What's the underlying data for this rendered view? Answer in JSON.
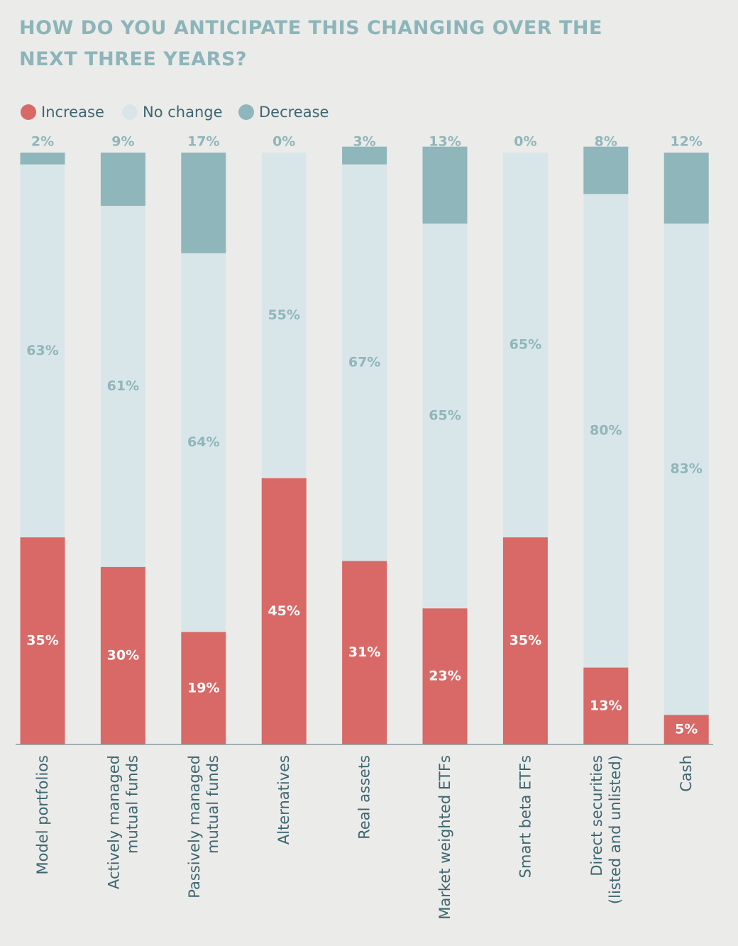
{
  "chart_data": {
    "type": "stacked_bar",
    "title": "HOW DO YOU ANTICIPATE THIS CHANGING OVER THE NEXT THREE YEARS?",
    "categories": [
      "Model portfolios",
      "Actively managed\nmutual funds",
      "Passively managed\nmutual funds",
      "Alternatives",
      "Real assets",
      "Market weighted ETFs",
      "Smart beta ETFs",
      "Direct securities\n(listed and unlisted)",
      "Cash"
    ],
    "series": [
      {
        "name": "Increase",
        "color": "#d96966",
        "values": [
          35,
          30,
          19,
          45,
          31,
          23,
          35,
          13,
          5
        ],
        "value_labels": [
          "35%",
          "30%",
          "19%",
          "45%",
          "31%",
          "23%",
          "35%",
          "13%",
          "5%"
        ]
      },
      {
        "name": "No change",
        "color": "#d9e6e9",
        "values": [
          63,
          61,
          64,
          55,
          67,
          65,
          65,
          80,
          83
        ],
        "value_labels": [
          "63%",
          "61%",
          "64%",
          "55%",
          "67%",
          "65%",
          "65%",
          "80%",
          "83%"
        ]
      },
      {
        "name": "Decrease",
        "color": "#8fb6ba",
        "values": [
          2,
          9,
          17,
          0,
          3,
          13,
          0,
          8,
          12
        ],
        "value_labels": [
          "2%",
          "9%",
          "17%",
          "0%",
          "3%",
          "13%",
          "0%",
          "8%",
          "12%"
        ]
      }
    ],
    "ylim": [
      0,
      100
    ]
  }
}
